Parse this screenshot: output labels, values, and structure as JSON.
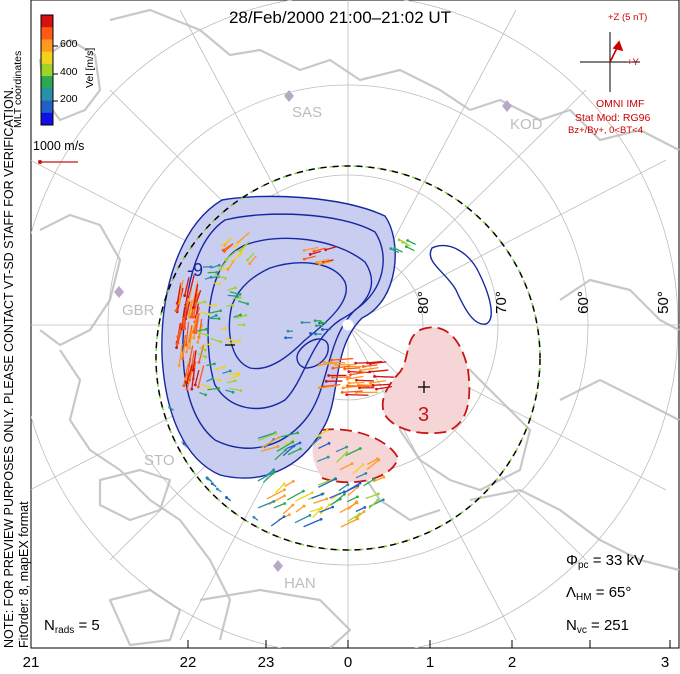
{
  "title": "28/Feb/2000 21:00–21:02 UT",
  "side_note_line1": "NOTE: FOR PREVIEW PURPOSES ONLY. PLEASE CONTACT VT-SD STAFF FOR VERIFICATION.",
  "side_note_line2": "FitOrder: 8, mapEX format",
  "coord_system": "MLT coordinates",
  "colorbar": {
    "title": "Vel [m/s]",
    "ticks": [
      "600",
      "400",
      "200"
    ],
    "colors": [
      "#d51212",
      "#ff5a14",
      "#ff9a1e",
      "#f2d21e",
      "#9ed42a",
      "#2aa852",
      "#2a8fa8",
      "#2060c8",
      "#1010e6"
    ]
  },
  "vector_scale_label": "1000 m/s",
  "imf": {
    "z_label": "+Z (5 nT)",
    "y_label": "+Y",
    "source": "OMNI IMF",
    "model": "Stat Mod: RG96",
    "condition": "Bz+/By+, 0<BT<4"
  },
  "lat_labels": [
    "80°",
    "70°",
    "60°",
    "50°"
  ],
  "radar_sites": [
    "SAS",
    "KOD",
    "GBR",
    "STO",
    "HAN"
  ],
  "contour_labels": {
    "negative": "-9",
    "positive": "3"
  },
  "stats": {
    "phi_pc_sym": "Φ",
    "phi_pc_sub": "pc",
    "phi_pc_val": "= 33 kV",
    "lambda_hm_sym": "Λ",
    "lambda_hm_sub": "HM",
    "lambda_hm_val": "= 65°",
    "n_vc_sym": "N",
    "n_vc_sub": "vc",
    "n_vc_val": "= 251",
    "n_rads_sym": "N",
    "n_rads_sub": "rads",
    "n_rads_val": "= 5"
  },
  "mlt_ticks": [
    "21",
    "22",
    "23",
    "0",
    "1",
    "2",
    "3"
  ],
  "colors": {
    "negative_fill": "#c9cdf0",
    "contour_neg": "#1428a0",
    "contour_pos": "#c81414",
    "positive_fill": "#f5d5d5",
    "land": "#c8c8c8",
    "grid": "#bdbdbd",
    "boundary_dash": "#7ad43c"
  }
}
